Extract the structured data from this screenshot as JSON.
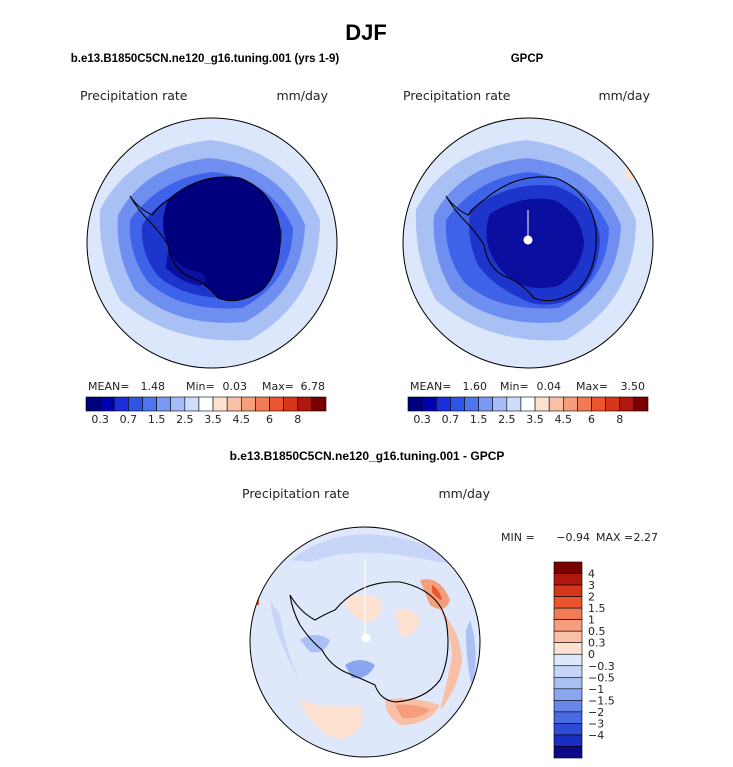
{
  "page": {
    "season": "DJF"
  },
  "palette": {
    "levels": [
      "#00007f",
      "#0000b3",
      "#1a2fd9",
      "#2f55e6",
      "#4d75ee",
      "#7a99f2",
      "#a6bcf7",
      "#cfdcfb",
      "#ffffff",
      "#fde2d2",
      "#f8c0a6",
      "#f59e7c",
      "#f07b54",
      "#ea5530",
      "#d8361b",
      "#b0180e",
      "#7a0000"
    ],
    "diff_levels": [
      "#7a0000",
      "#b0180e",
      "#d8361b",
      "#ea5530",
      "#f07b54",
      "#f59e7c",
      "#f8c0a6",
      "#fde2d2",
      "#dfe8fb",
      "#c7d6f8",
      "#aac0f5",
      "#8aa6ef",
      "#6788e8",
      "#4a6ae2",
      "#2f4cd8",
      "#1b2cc2",
      "#0a0a8a"
    ],
    "land_outline": "#000000"
  },
  "chart_data": [
    {
      "type": "heatmap",
      "projection": "south-polar-stereographic",
      "title": "b.e13.B1850C5CN.ne120_g16.tuning.001 (yrs 1-9)",
      "variable": "Precipitation rate",
      "units": "mm/day",
      "stats": {
        "mean_label": "MEAN=",
        "mean": "1.48",
        "min_label": "Min=",
        "min": "0.03",
        "max_label": "Max=",
        "max": "6.78"
      },
      "colorbar": {
        "orientation": "horizontal",
        "tick_labels": [
          "0.3",
          "0.7",
          "1.5",
          "2.5",
          "3.5",
          "4.5",
          "6",
          "8"
        ]
      }
    },
    {
      "type": "heatmap",
      "projection": "south-polar-stereographic",
      "title": "GPCP",
      "variable": "Precipitation rate",
      "units": "mm/day",
      "stats": {
        "mean_label": "MEAN=",
        "mean": "1.60",
        "min_label": "Min=",
        "min": "0.04",
        "max_label": "Max=",
        "max": "3.50"
      },
      "colorbar": {
        "orientation": "horizontal",
        "tick_labels": [
          "0.3",
          "0.7",
          "1.5",
          "2.5",
          "3.5",
          "4.5",
          "6",
          "8"
        ]
      }
    },
    {
      "type": "heatmap",
      "projection": "south-polar-stereographic",
      "title": "b.e13.B1850C5CN.ne120_g16.tuning.001 - GPCP",
      "variable": "Precipitation rate",
      "units": "mm/day",
      "stats": {
        "min_label": "MIN =",
        "min": "−0.94",
        "max_label": "MAX =",
        "max": "2.27"
      },
      "colorbar": {
        "orientation": "vertical",
        "tick_labels": [
          "4",
          "3",
          "2",
          "1.5",
          "1",
          "0.5",
          "0.3",
          "0",
          "−0.3",
          "−0.5",
          "−1",
          "−1.5",
          "−2",
          "−3",
          "−4"
        ]
      }
    }
  ]
}
